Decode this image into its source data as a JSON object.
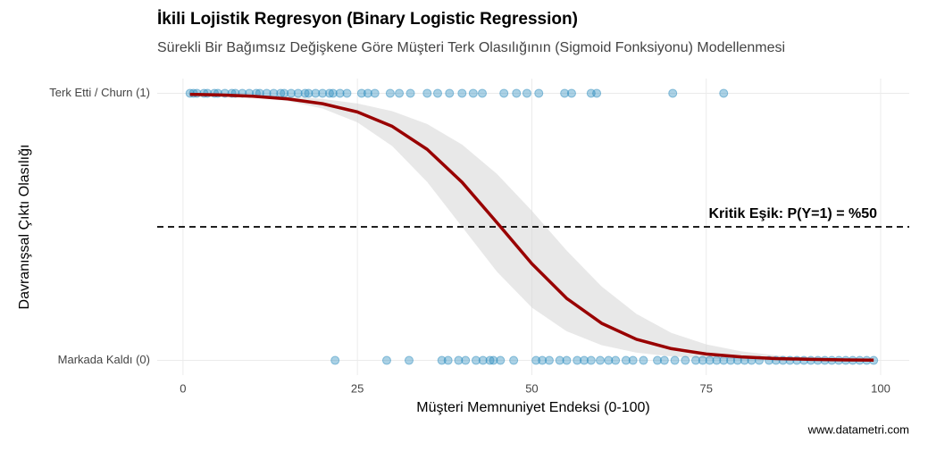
{
  "chart_data": {
    "type": "logistic",
    "title": "İkili Lojistik Regresyon (Binary Logistic Regression)",
    "subtitle": "Sürekli Bir Bağımsız Değişkene Göre Müşteri Terk Olasılığının (Sigmoid Fonksiyonu) Modellenmesi",
    "x_label": "Müşteri Memnuniyet Endeksi (0-100)",
    "y_label": "Davranışsal Çıktı Olasılığı",
    "caption": "www.datametri.com",
    "xlim": [
      -3.7,
      104.1
    ],
    "ylim": [
      -0.055,
      1.055
    ],
    "xticks": [
      0,
      25,
      50,
      75,
      100
    ],
    "yticks": [
      {
        "value": 0,
        "label": "Markada Kaldı (0)"
      },
      {
        "value": 1,
        "label": "Terk Etti / Churn (1)"
      }
    ],
    "grid": true,
    "point_color": "#2b8cbe",
    "groups": [
      {
        "y": 1,
        "x": [
          1,
          1.5,
          2,
          3,
          3.5,
          4.5,
          5,
          6,
          7,
          7.5,
          8.5,
          9.5,
          10.5,
          11,
          12,
          13,
          14,
          14.5,
          15.5,
          16.5,
          17.5,
          18,
          19,
          20,
          21,
          21.5,
          22.5,
          23.5,
          25.6,
          26.5,
          27.5,
          29.7,
          31,
          32.6,
          35,
          36.5,
          38.2,
          40,
          41.6,
          42.9,
          46,
          47.8,
          49.3,
          51,
          54.7,
          55.7,
          58.5,
          59.3,
          70.2,
          77.5
        ]
      },
      {
        "y": 0,
        "x": [
          21.8,
          29.2,
          32.4,
          37.1,
          38,
          39.5,
          40.5,
          42,
          43,
          44,
          44.5,
          45.5,
          47.4,
          50.6,
          51.5,
          52.5,
          54,
          55,
          56.5,
          57.5,
          58.5,
          59.8,
          61,
          62,
          63.5,
          64.5,
          66,
          68,
          69,
          70.5,
          72,
          73.5,
          74.5,
          75.5,
          76.5,
          77.5,
          78.5,
          79.5,
          80.5,
          81.5,
          82.6,
          84,
          85,
          86,
          87,
          88,
          89,
          90,
          91,
          92,
          93,
          94,
          95,
          96,
          97,
          98,
          99
        ]
      }
    ],
    "fit": {
      "color": "#990000",
      "band_color": "#d9d9d9",
      "x": [
        1,
        5,
        10,
        15,
        20,
        25,
        30,
        35,
        40,
        45,
        50,
        55,
        60,
        65,
        70,
        75,
        80,
        85,
        90,
        95,
        99
      ],
      "y": [
        0.996,
        0.994,
        0.989,
        0.979,
        0.961,
        0.93,
        0.876,
        0.79,
        0.667,
        0.516,
        0.362,
        0.232,
        0.139,
        0.079,
        0.044,
        0.024,
        0.013,
        0.007,
        0.004,
        0.002,
        0.001
      ],
      "upper": [
        0.998,
        0.996,
        0.994,
        0.988,
        0.979,
        0.962,
        0.933,
        0.885,
        0.808,
        0.698,
        0.56,
        0.411,
        0.277,
        0.174,
        0.103,
        0.06,
        0.034,
        0.019,
        0.01,
        0.006,
        0.004
      ],
      "lower": [
        0.996,
        0.993,
        0.985,
        0.971,
        0.943,
        0.891,
        0.802,
        0.668,
        0.5,
        0.332,
        0.198,
        0.109,
        0.057,
        0.029,
        0.015,
        0.007,
        0.004,
        0.002,
        0.001,
        0.001,
        0
      ]
    },
    "threshold": {
      "value": 0.5,
      "label": "Kritik Eşik: P(Y=1) = %50"
    }
  }
}
